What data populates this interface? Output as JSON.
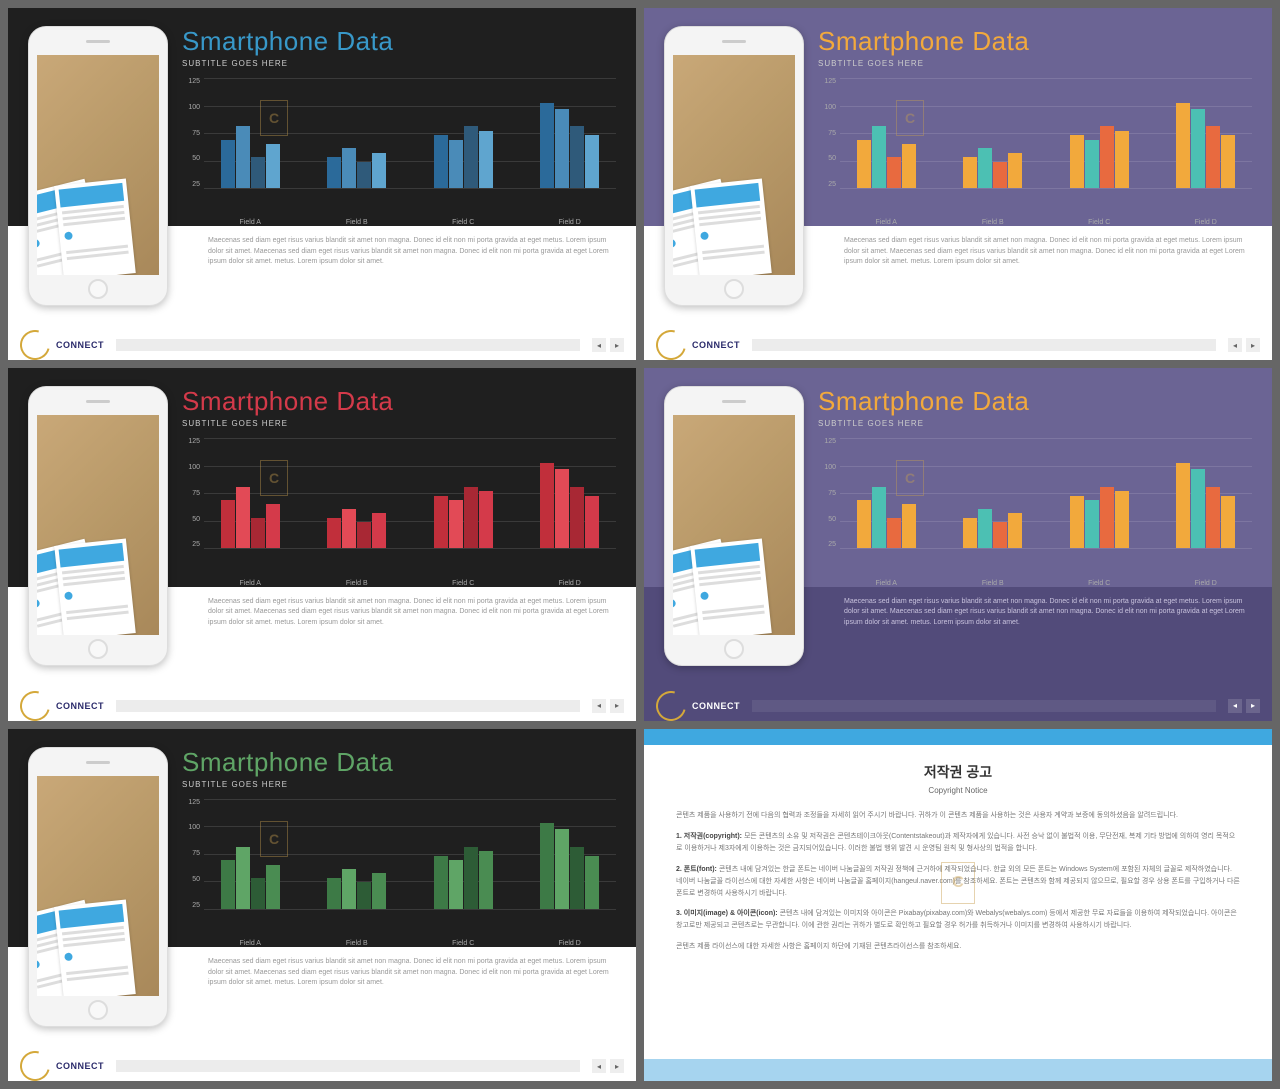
{
  "common": {
    "title": "Smartphone Data",
    "subtitle": "SUBTITLE GOES HERE",
    "body_text": "Maecenas sed diam eget risus varius blandit sit amet non magna. Donec id elit non mi porta gravida at eget metus. Lorem ipsum dolor sit amet. Maecenas sed diam eget risus varius blandit sit amet non magna. Donec id elit non mi porta gravida at eget Lorem ipsum dolor sit amet. metus. Lorem ipsum dolor sit amet.",
    "logo_text": "CONNECT",
    "nav_prev": "◂",
    "nav_next": "▸",
    "watermark_letter": "C"
  },
  "chart": {
    "y_ticks": [
      "125",
      "100",
      "75",
      "50",
      "25"
    ],
    "y_max": 125,
    "categories": [
      "Field A",
      "Field B",
      "Field C",
      "Field D"
    ],
    "series": [
      [
        55,
        70,
        35,
        50
      ],
      [
        35,
        45,
        30,
        40
      ],
      [
        60,
        55,
        70,
        65
      ],
      [
        97,
        90,
        70,
        60
      ]
    ],
    "gridline_color_dark": "rgba(255,255,255,0.12)",
    "gridline_color_purple": "rgba(255,255,255,0.12)"
  },
  "slides": [
    {
      "upper_bg": "#1f1f1f",
      "lower_bg": "#ffffff",
      "title_color": "#3898c9",
      "body_color": "#999999",
      "logo_color": "#2b2b6b",
      "bar_colors": [
        "#2b6a9a",
        "#4a8bb8",
        "#2f5a7a",
        "#5fa5cf"
      ],
      "footer_bg": "#ffffff",
      "nav_style": "light"
    },
    {
      "upper_bg": "#6b6494",
      "lower_bg": "#ffffff",
      "title_color": "#f2a93c",
      "body_color": "#999999",
      "logo_color": "#2b2b6b",
      "bar_colors": [
        "#f2a93c",
        "#4cc0b3",
        "#e86a3f",
        "#f2a93c"
      ],
      "footer_bg": "#ffffff",
      "nav_style": "light"
    },
    {
      "upper_bg": "#1f1f1f",
      "lower_bg": "#ffffff",
      "title_color": "#d43a4a",
      "body_color": "#999999",
      "logo_color": "#2b2b6b",
      "bar_colors": [
        "#c12f3b",
        "#e24a56",
        "#a82834",
        "#d43a4a"
      ],
      "footer_bg": "#ffffff",
      "nav_style": "light"
    },
    {
      "upper_bg": "#6b6494",
      "lower_bg": "#524b7a",
      "title_color": "#f2a93c",
      "body_color": "#c8c2dd",
      "logo_color": "#ffffff",
      "bar_colors": [
        "#f2a93c",
        "#4cc0b3",
        "#e86a3f",
        "#f2a93c"
      ],
      "footer_bg": "#524b7a",
      "nav_style": "dark"
    },
    {
      "upper_bg": "#1f1f1f",
      "lower_bg": "#ffffff",
      "title_color": "#5fa566",
      "body_color": "#999999",
      "logo_color": "#2b2b6b",
      "bar_colors": [
        "#3d7a46",
        "#5fa566",
        "#2d5c36",
        "#4a8c52"
      ],
      "footer_bg": "#ffffff",
      "nav_style": "light"
    }
  ],
  "copyright": {
    "border_top": "#3fa8e0",
    "border_bottom": "#a6d4ef",
    "title": "저작권 공고",
    "subtitle": "Copyright Notice",
    "intro": "콘텐츠 제품을 사용하기 전에 다음의 협력과 조정들을 자세히 읽어 주시기 바랍니다. 귀하가 이 콘텐츠 제품을 사용하는 것은 사용자 계약과 보증에 동의하셨음을 알려드립니다.",
    "p1_label": "1. 저작권(copyright):",
    "p1": " 모든 콘텐츠의 소유 및 저작권은 콘텐츠테이크아웃(Contentstakeout)과 제작자에게 있습니다. 사전 승낙 없이 불법적 이용, 무단전재, 복제 기타 방법에 의하여 영리 목적으로 이용하거나 제3자에게 이용하는 것은 금지되어있습니다. 이러한 불법 행위 발견 시 운영팀 원칙 및 형사상의 법적을 합니다.",
    "p2_label": "2. 폰트(font):",
    "p2": " 콘텐츠 내에 담겨있는 한글 폰트는 네이버 나눔글꼴의 저작권 정책에 근거하에 제작되었습니다. 한글 외의 모든 폰트는 Windows System에 포함된 자체의 글꼴로 제작하였습니다. 네이버 나눔글꼴 라이선스에 대한 자세한 사항은 네이버 나눔글꼴 홈페이지(hangeul.naver.com)를 참조하세요. 폰트는 콘텐츠와 함께 제공되지 않으므로, 필요할 경우 상용 폰트를 구입하거나 다른 폰트로 변경하여 사용하시기 바랍니다.",
    "p3_label": "3. 이미지(image) & 아이콘(icon):",
    "p3": " 콘텐츠 내에 담겨있는 이미지와 아이콘은 Pixabay(pixabay.com)와 Webalys(webalys.com) 등에서 제공한 무료 자료들을 이용하여 제작되었습니다. 아이콘은 창고로만 제공되고 콘텐츠로는 무관합니다. 이에 관한 권리는 귀하가 별도로 확인하고 필요할 경우 허가를 취득하거나 이미지를 변경하여 사용하시기 바랍니다.",
    "outro": "콘텐츠 제품 라이선스에 대한 자세한 사항은 홈페이지 하단에 기재된 콘텐츠라이선스를 참조하세요."
  }
}
